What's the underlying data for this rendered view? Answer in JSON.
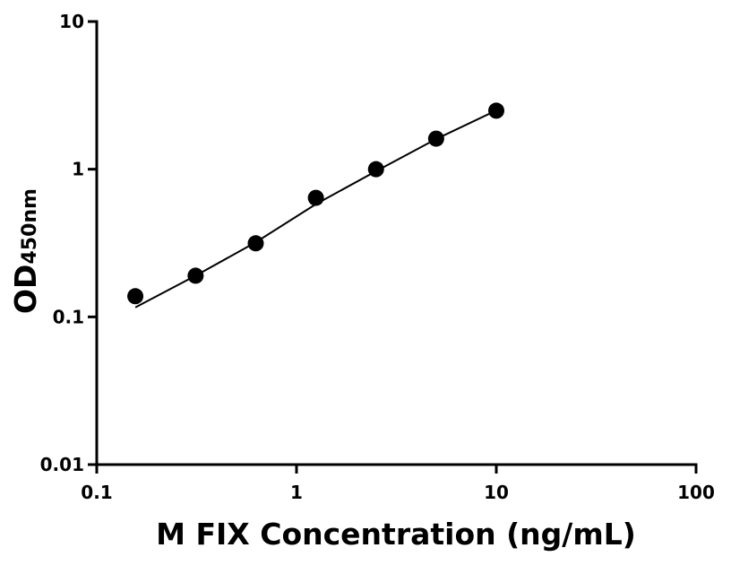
{
  "chart_data": {
    "type": "scatter",
    "xlabel": "M FIX Concentration (ng/mL)",
    "ylabel": "OD",
    "ylabel_subscript": "450nm",
    "xscale": "log",
    "yscale": "log",
    "xlim": [
      0.1,
      100
    ],
    "xticks": [
      0.1,
      1,
      10,
      100
    ],
    "ylim": [
      0.01,
      10
    ],
    "yticks": [
      0.01,
      0.1,
      1,
      10
    ],
    "x": [
      0.156,
      0.3125,
      0.625,
      1.25,
      2.5,
      5,
      10
    ],
    "series": [
      {
        "color": "#000000",
        "values": [
          0.138,
          0.19,
          0.315,
          0.64,
          1.0,
          1.61,
          2.49
        ]
      }
    ],
    "fit": {
      "color": "#000000",
      "values": [
        0.116,
        0.19,
        0.32,
        0.58,
        0.97,
        1.6,
        2.5
      ]
    }
  }
}
